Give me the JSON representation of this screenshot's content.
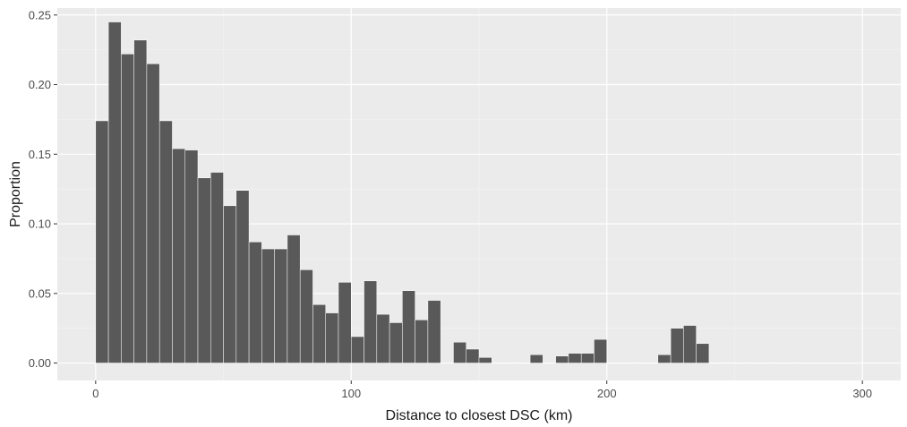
{
  "chart_data": {
    "type": "bar",
    "xlabel": "Distance to closest DSC (km)",
    "ylabel": "Proportion",
    "xlim": [
      -15,
      315
    ],
    "ylim": [
      -0.0125,
      0.255
    ],
    "grid": true,
    "colors": {
      "panel": "#ebebeb",
      "grid_major": "#ffffff",
      "grid_minor": "#f4f4f4",
      "bar": "#595959",
      "bar_edge": "#ffffff"
    },
    "bin_width": 5,
    "x_ticks": [
      0,
      100,
      200,
      300
    ],
    "x_tick_labels": [
      "0",
      "100",
      "200",
      "300"
    ],
    "y_ticks": [
      0,
      0.05,
      0.1,
      0.15,
      0.2,
      0.25
    ],
    "y_tick_labels": [
      "0.00",
      "0.05",
      "0.10",
      "0.15",
      "0.20",
      "0.25"
    ],
    "x": [
      2.5,
      7.5,
      12.5,
      17.5,
      22.5,
      27.5,
      32.5,
      37.5,
      42.5,
      47.5,
      52.5,
      57.5,
      62.5,
      67.5,
      72.5,
      77.5,
      82.5,
      87.5,
      92.5,
      97.5,
      102.5,
      107.5,
      112.5,
      117.5,
      122.5,
      127.5,
      132.5,
      137.5,
      142.5,
      147.5,
      152.5,
      157.5,
      162.5,
      167.5,
      172.5,
      177.5,
      182.5,
      187.5,
      192.5,
      197.5,
      202.5,
      207.5,
      212.5,
      217.5,
      222.5,
      227.5,
      232.5,
      237.5,
      242.5,
      247.5,
      252.5,
      257.5,
      262.5,
      267.5,
      272.5,
      277.5,
      282.5,
      287.5,
      292.5,
      297.5
    ],
    "values": [
      0.174,
      0.245,
      0.222,
      0.232,
      0.215,
      0.174,
      0.154,
      0.153,
      0.133,
      0.137,
      0.113,
      0.124,
      0.087,
      0.082,
      0.082,
      0.092,
      0.067,
      0.042,
      0.036,
      0.058,
      0.019,
      0.059,
      0.035,
      0.029,
      0.052,
      0.031,
      0.045,
      0,
      0.015,
      0.01,
      0.004,
      0,
      0,
      0,
      0.006,
      0,
      0.005,
      0.007,
      0.007,
      0.017,
      0,
      0,
      0,
      0,
      0.006,
      0.025,
      0.027,
      0.014,
      0,
      0,
      0,
      0,
      0,
      0,
      0,
      0,
      0,
      0,
      0,
      0
    ]
  }
}
